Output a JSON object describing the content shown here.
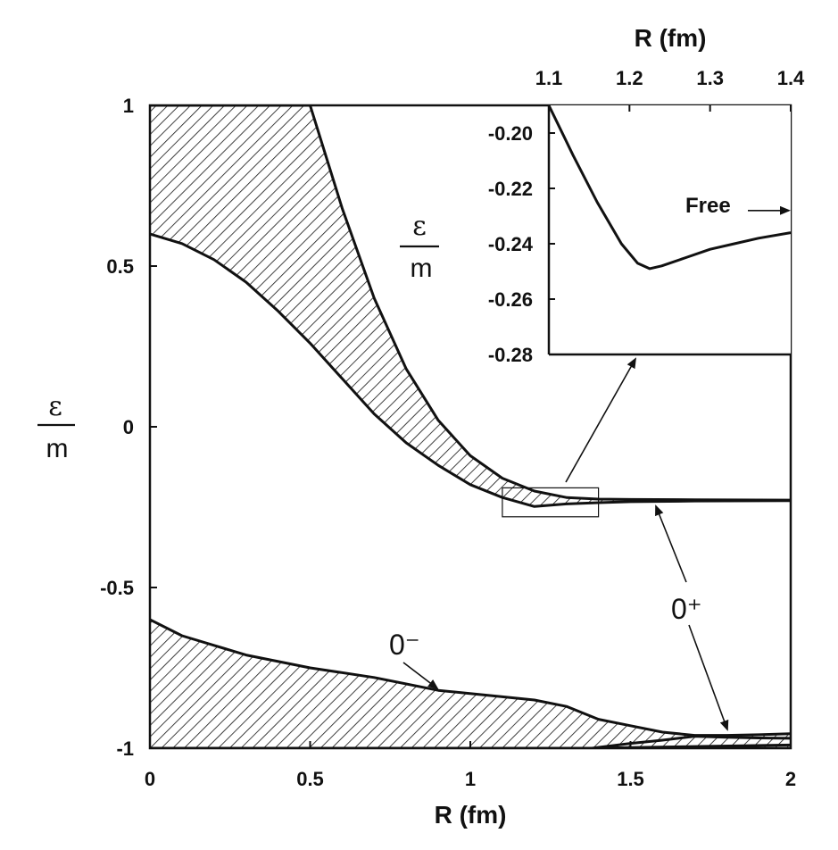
{
  "chart_data": [
    {
      "type": "area",
      "title": "",
      "xlabel": "R (fm)",
      "ylabel_num": "ε",
      "ylabel_den": "m",
      "xlim": [
        0,
        2
      ],
      "ylim": [
        -1,
        1
      ],
      "x_ticks": [
        "0",
        "0.5",
        "1",
        "1.5",
        "2"
      ],
      "y_ticks": [
        "1",
        "0.5",
        "0",
        "-0.5",
        "-1"
      ],
      "grid": false,
      "series": [
        {
          "name": "0⁺",
          "shading": "hatched band",
          "upper": {
            "x": [
              0,
              0.1,
              0.2,
              0.3,
              0.4,
              0.5,
              0.6,
              0.7,
              0.8,
              0.9,
              1.0,
              1.1,
              1.2,
              1.3,
              1.4,
              1.5,
              1.7,
              2.0
            ],
            "y": [
              1.0,
              1.0,
              1.0,
              1.0,
              1.0,
              1.0,
              0.68,
              0.4,
              0.18,
              0.02,
              -0.09,
              -0.16,
              -0.2,
              -0.22,
              -0.225,
              -0.226,
              -0.227,
              -0.228
            ]
          },
          "lower": {
            "x": [
              0,
              0.1,
              0.2,
              0.3,
              0.4,
              0.5,
              0.6,
              0.7,
              0.8,
              0.9,
              1.0,
              1.1,
              1.2,
              1.3,
              1.4,
              1.5,
              1.7,
              2.0
            ],
            "y": [
              0.6,
              0.57,
              0.52,
              0.45,
              0.36,
              0.26,
              0.15,
              0.04,
              -0.05,
              -0.12,
              -0.18,
              -0.22,
              -0.248,
              -0.24,
              -0.236,
              -0.233,
              -0.231,
              -0.23
            ]
          }
        },
        {
          "name": "0⁻",
          "shading": "hatched band",
          "upper": {
            "x": [
              0,
              0.1,
              0.2,
              0.3,
              0.5,
              0.7,
              0.9,
              1.1,
              1.2,
              1.3,
              1.4,
              1.5,
              1.6,
              1.7,
              1.8,
              1.9,
              2.0
            ],
            "y": [
              -0.6,
              -0.65,
              -0.68,
              -0.71,
              -0.75,
              -0.78,
              -0.82,
              -0.84,
              -0.85,
              -0.87,
              -0.91,
              -0.93,
              -0.95,
              -0.96,
              -0.96,
              -0.958,
              -0.955
            ]
          },
          "lower": {
            "x": [
              0,
              2.0
            ],
            "y": [
              -1.0,
              -1.0
            ]
          }
        },
        {
          "name": "0⁺ (lower branch)",
          "shading": "hatched band",
          "upper": {
            "x": [
              1.38,
              1.5,
              1.6,
              1.7,
              1.8,
              1.9,
              2.0
            ],
            "y": [
              -1.0,
              -0.985,
              -0.975,
              -0.963,
              -0.966,
              -0.968,
              -0.969
            ]
          },
          "lower": {
            "x": [
              1.38,
              2.0
            ],
            "y": [
              -1.0,
              -0.99
            ]
          }
        }
      ],
      "annotations": [
        "0⁻",
        "0⁺"
      ],
      "zoom_box": {
        "x": [
          1.1,
          1.4
        ],
        "y": [
          -0.28,
          -0.19
        ]
      }
    },
    {
      "type": "line",
      "title": "",
      "xlabel": "R (fm)",
      "ylabel_num": "ε",
      "ylabel_den": "m",
      "xlim": [
        1.1,
        1.4
      ],
      "ylim": [
        -0.28,
        -0.19
      ],
      "x_ticks": [
        "1.1",
        "1.2",
        "1.3",
        "1.4"
      ],
      "y_ticks": [
        "-0.20",
        "-0.22",
        "-0.24",
        "-0.26",
        "-0.28"
      ],
      "grid": false,
      "series": [
        {
          "x": [
            1.1,
            1.13,
            1.16,
            1.19,
            1.21,
            1.225,
            1.24,
            1.27,
            1.3,
            1.33,
            1.36,
            1.4
          ],
          "y": [
            -0.19,
            -0.208,
            -0.225,
            -0.24,
            -0.247,
            -0.249,
            -0.248,
            -0.245,
            -0.242,
            -0.24,
            -0.238,
            -0.236
          ]
        }
      ],
      "annotation": "Free",
      "free_level": -0.228
    }
  ]
}
